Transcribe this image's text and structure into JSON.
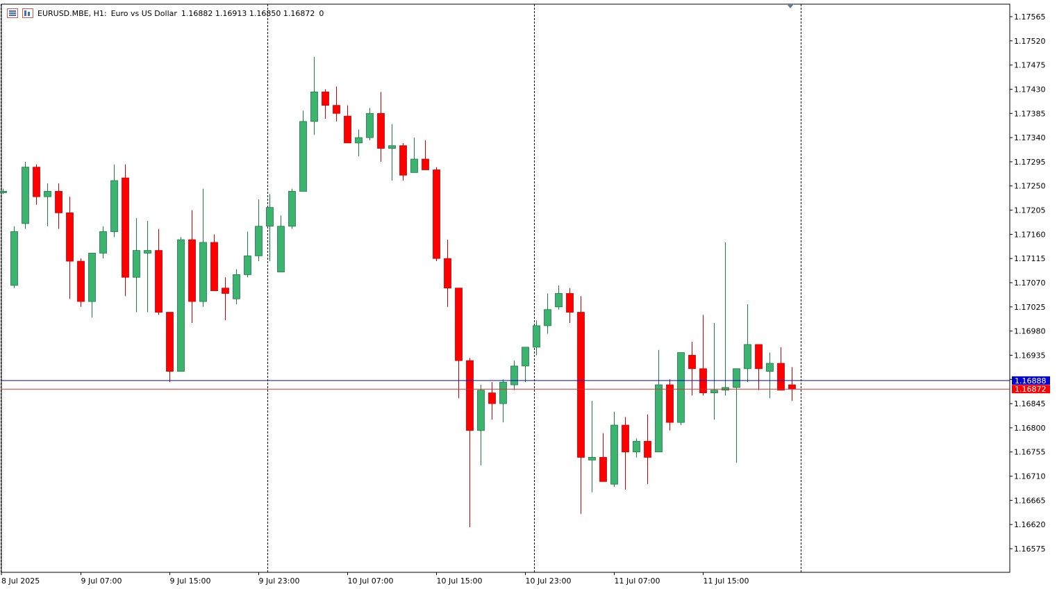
{
  "header": {
    "symbol": "EURUSD.MBE, H1:",
    "description": "Euro vs US Dollar",
    "ohlc": "1.16882 1.16913 1.16850 1.16872",
    "volume": "0"
  },
  "colors": {
    "bull": "#3cb371",
    "bear": "#ff0000",
    "bid_line": "#0000cd",
    "ask_line": "#d32f2f",
    "background": "#ffffff",
    "grid_separator": "#000000"
  },
  "chart_data": {
    "type": "candlestick",
    "title": "",
    "xlabel": "",
    "ylabel": "",
    "ylim": [
      1.1655,
      1.1759
    ],
    "y_ticks": [
      "1.17565",
      "1.17520",
      "1.17475",
      "1.17430",
      "1.17385",
      "1.17340",
      "1.17295",
      "1.17250",
      "1.17205",
      "1.17160",
      "1.17115",
      "1.17070",
      "1.17025",
      "1.16980",
      "1.16935",
      "1.16890",
      "1.16845",
      "1.16800",
      "1.16755",
      "1.16710",
      "1.16665",
      "1.16620",
      "1.16575"
    ],
    "x_ticks": [
      {
        "label": "8 Jul 2025",
        "bar": -1
      },
      {
        "label": "9 Jul 07:00",
        "bar": 7
      },
      {
        "label": "9 Jul 15:00",
        "bar": 15
      },
      {
        "label": "9 Jul 23:00",
        "bar": 23
      },
      {
        "label": "10 Jul 07:00",
        "bar": 31
      },
      {
        "label": "10 Jul 15:00",
        "bar": 39
      },
      {
        "label": "10 Jul 23:00",
        "bar": 47
      },
      {
        "label": "11 Jul 07:00",
        "bar": 55
      },
      {
        "label": "11 Jul 15:00",
        "bar": 63
      }
    ],
    "day_separators": [
      -0.25,
      23.75,
      47.75,
      71.75
    ],
    "bid_price": 1.16888,
    "ask_price": 1.16872,
    "bid_label": "1.16888",
    "ask_label": "1.16872",
    "candles": [
      [
        1.1724,
        1.17245,
        1.17235,
        1.1724
      ],
      [
        1.17065,
        1.17175,
        1.1706,
        1.17165
      ],
      [
        1.1718,
        1.17295,
        1.1717,
        1.17285
      ],
      [
        1.17285,
        1.1729,
        1.17215,
        1.1723
      ],
      [
        1.1723,
        1.17255,
        1.17175,
        1.1724
      ],
      [
        1.1724,
        1.17255,
        1.1717,
        1.172
      ],
      [
        1.172,
        1.1723,
        1.1704,
        1.1711
      ],
      [
        1.1711,
        1.17115,
        1.17025,
        1.17035
      ],
      [
        1.17035,
        1.17125,
        1.17005,
        1.17125
      ],
      [
        1.17125,
        1.17175,
        1.17115,
        1.17165
      ],
      [
        1.17165,
        1.1729,
        1.17155,
        1.1726
      ],
      [
        1.17265,
        1.1729,
        1.17045,
        1.1708
      ],
      [
        1.1708,
        1.1719,
        1.17015,
        1.1713
      ],
      [
        1.17125,
        1.17185,
        1.17015,
        1.1713
      ],
      [
        1.1713,
        1.1717,
        1.1701,
        1.17015
      ],
      [
        1.17015,
        1.17015,
        1.16885,
        1.16905
      ],
      [
        1.16905,
        1.17155,
        1.16905,
        1.1715
      ],
      [
        1.1715,
        1.17205,
        1.16995,
        1.17035
      ],
      [
        1.17035,
        1.17245,
        1.17025,
        1.17145
      ],
      [
        1.17145,
        1.1716,
        1.1706,
        1.17055
      ],
      [
        1.1706,
        1.1708,
        1.17,
        1.1705
      ],
      [
        1.1704,
        1.17095,
        1.1703,
        1.17085
      ],
      [
        1.17085,
        1.17165,
        1.1708,
        1.1712
      ],
      [
        1.1712,
        1.17225,
        1.1711,
        1.17175
      ],
      [
        1.17175,
        1.17235,
        1.1711,
        1.1721
      ],
      [
        1.1709,
        1.17195,
        1.1709,
        1.17175
      ],
      [
        1.17175,
        1.17245,
        1.1717,
        1.1724
      ],
      [
        1.1724,
        1.1739,
        1.1724,
        1.1737
      ],
      [
        1.1737,
        1.1749,
        1.17345,
        1.17425
      ],
      [
        1.17425,
        1.1743,
        1.17375,
        1.174
      ],
      [
        1.174,
        1.17435,
        1.1737,
        1.17385
      ],
      [
        1.1738,
        1.174,
        1.1733,
        1.1733
      ],
      [
        1.1733,
        1.17355,
        1.17305,
        1.1734
      ],
      [
        1.1734,
        1.17395,
        1.17335,
        1.17385
      ],
      [
        1.17385,
        1.17425,
        1.17295,
        1.1732
      ],
      [
        1.1732,
        1.17365,
        1.1726,
        1.17325
      ],
      [
        1.17325,
        1.1733,
        1.1726,
        1.1727
      ],
      [
        1.17275,
        1.1734,
        1.17275,
        1.173
      ],
      [
        1.173,
        1.17335,
        1.1728,
        1.1728
      ],
      [
        1.1728,
        1.17285,
        1.1711,
        1.17115
      ],
      [
        1.17115,
        1.1715,
        1.17025,
        1.1706
      ],
      [
        1.1706,
        1.1706,
        1.16855,
        1.16925
      ],
      [
        1.16925,
        1.1693,
        1.16615,
        1.16795
      ],
      [
        1.16795,
        1.1688,
        1.1673,
        1.1687
      ],
      [
        1.16865,
        1.16885,
        1.16815,
        1.16845
      ],
      [
        1.16845,
        1.1689,
        1.1681,
        1.16885
      ],
      [
        1.1688,
        1.16925,
        1.1687,
        1.16915
      ],
      [
        1.16915,
        1.1695,
        1.16885,
        1.1695
      ],
      [
        1.1695,
        1.17,
        1.16935,
        1.1699
      ],
      [
        1.1699,
        1.1705,
        1.16975,
        1.1702
      ],
      [
        1.17025,
        1.17065,
        1.1702,
        1.1705
      ],
      [
        1.1705,
        1.1706,
        1.16995,
        1.17015
      ],
      [
        1.17015,
        1.17045,
        1.1664,
        1.16745
      ],
      [
        1.1674,
        1.1685,
        1.1668,
        1.16745
      ],
      [
        1.16745,
        1.1679,
        1.167,
        1.167
      ],
      [
        1.16695,
        1.1683,
        1.1669,
        1.16805
      ],
      [
        1.16805,
        1.1682,
        1.16685,
        1.16755
      ],
      [
        1.16755,
        1.1678,
        1.16745,
        1.16775
      ],
      [
        1.16775,
        1.16825,
        1.16695,
        1.16745
      ],
      [
        1.16755,
        1.16945,
        1.16755,
        1.1688
      ],
      [
        1.1688,
        1.1689,
        1.16795,
        1.1681
      ],
      [
        1.1681,
        1.1694,
        1.16805,
        1.1694
      ],
      [
        1.16935,
        1.1696,
        1.1686,
        1.1691
      ],
      [
        1.1691,
        1.1701,
        1.1686,
        1.16865
      ],
      [
        1.16865,
        1.16995,
        1.16815,
        1.1687
      ],
      [
        1.1687,
        1.17145,
        1.1686,
        1.16875
      ],
      [
        1.16875,
        1.169,
        1.16735,
        1.1691
      ],
      [
        1.1691,
        1.1703,
        1.16885,
        1.16955
      ],
      [
        1.16955,
        1.16955,
        1.1687,
        1.1691
      ],
      [
        1.16905,
        1.1694,
        1.16855,
        1.1692
      ],
      [
        1.1692,
        1.1695,
        1.1687,
        1.1687
      ],
      [
        1.1688,
        1.16913,
        1.1685,
        1.16872
      ]
    ]
  }
}
